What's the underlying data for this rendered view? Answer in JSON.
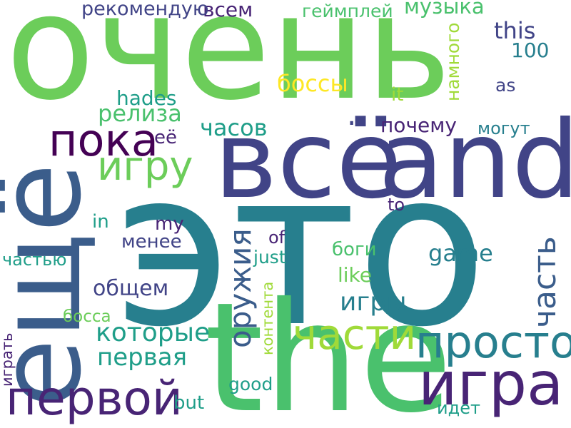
{
  "palette": {
    "yellow": "#fde725",
    "lime": "#a0da39",
    "green": "#4ac16d",
    "light_green": "#6ccd5a",
    "teal": "#1f9e89",
    "dark_teal": "#277f8e",
    "blue": "#3b5d8b",
    "indigo": "#414487",
    "purple": "#482475",
    "deep_purple": "#440154"
  },
  "words": [
    {
      "text": "очень",
      "color": "light_green",
      "orientation": "horizontal"
    },
    {
      "text": "это",
      "color": "dark_teal",
      "orientation": "horizontal"
    },
    {
      "text": "the",
      "color": "green",
      "orientation": "horizontal"
    },
    {
      "text": "всё",
      "color": "indigo",
      "orientation": "horizontal"
    },
    {
      "text": "and",
      "color": "indigo",
      "orientation": "horizontal"
    },
    {
      "text": "ещё",
      "color": "blue",
      "orientation": "vertical"
    },
    {
      "text": "игра",
      "color": "purple",
      "orientation": "horizontal"
    },
    {
      "text": "первой",
      "color": "purple",
      "orientation": "horizontal"
    },
    {
      "text": "просто",
      "color": "dark_teal",
      "orientation": "horizontal"
    },
    {
      "text": "части",
      "color": "lime",
      "orientation": "horizontal"
    },
    {
      "text": "пока",
      "color": "deep_purple",
      "orientation": "horizontal"
    },
    {
      "text": "игру",
      "color": "light_green",
      "orientation": "horizontal"
    },
    {
      "text": "часть",
      "color": "blue",
      "orientation": "vertical"
    },
    {
      "text": "оружия",
      "color": "blue",
      "orientation": "vertical"
    },
    {
      "text": "которые",
      "color": "teal",
      "orientation": "horizontal"
    },
    {
      "text": "первая",
      "color": "teal",
      "orientation": "horizontal"
    },
    {
      "text": "игры",
      "color": "dark_teal",
      "orientation": "horizontal"
    },
    {
      "text": "часов",
      "color": "teal",
      "orientation": "horizontal"
    },
    {
      "text": "релиза",
      "color": "green",
      "orientation": "horizontal"
    },
    {
      "text": "this",
      "color": "indigo",
      "orientation": "horizontal"
    },
    {
      "text": "..",
      "color": "indigo",
      "orientation": "horizontal"
    },
    {
      "text": "почему",
      "color": "purple",
      "orientation": "horizontal"
    },
    {
      "text": "боссы",
      "color": "yellow",
      "orientation": "horizontal"
    },
    {
      "text": "game",
      "color": "dark_teal",
      "orientation": "horizontal"
    },
    {
      "text": "общем",
      "color": "indigo",
      "orientation": "horizontal"
    },
    {
      "text": "hades",
      "color": "teal",
      "orientation": "horizontal"
    },
    {
      "text": "100",
      "color": "dark_teal",
      "orientation": "horizontal"
    },
    {
      "text": "всем",
      "color": "purple",
      "orientation": "horizontal"
    },
    {
      "text": "рекомендую",
      "color": "indigo",
      "orientation": "horizontal"
    },
    {
      "text": "геймплей",
      "color": "green",
      "orientation": "horizontal"
    },
    {
      "text": "музыка",
      "color": "green",
      "orientation": "horizontal"
    },
    {
      "text": "намного",
      "color": "lime",
      "orientation": "vertical"
    },
    {
      "text": "as",
      "color": "indigo",
      "orientation": "horizontal"
    },
    {
      "text": "it",
      "color": "lime",
      "orientation": "horizontal"
    },
    {
      "text": "могут",
      "color": "dark_teal",
      "orientation": "horizontal"
    },
    {
      "text": "её",
      "color": "purple",
      "orientation": "horizontal"
    },
    {
      "text": "to",
      "color": "purple",
      "orientation": "horizontal"
    },
    {
      "text": "in",
      "color": "teal",
      "orientation": "horizontal"
    },
    {
      "text": "my",
      "color": "purple",
      "orientation": "horizontal"
    },
    {
      "text": "менее",
      "color": "indigo",
      "orientation": "horizontal"
    },
    {
      "text": "of",
      "color": "purple",
      "orientation": "horizontal"
    },
    {
      "text": "just",
      "color": "teal",
      "orientation": "horizontal"
    },
    {
      "text": "боги",
      "color": "green",
      "orientation": "horizontal"
    },
    {
      "text": "like",
      "color": "light_green",
      "orientation": "horizontal"
    },
    {
      "text": "частью",
      "color": "teal",
      "orientation": "horizontal"
    },
    {
      "text": "контента",
      "color": "lime",
      "orientation": "vertical"
    },
    {
      "text": "босса",
      "color": "light_green",
      "orientation": "horizontal"
    },
    {
      "text": "играть",
      "color": "purple",
      "orientation": "vertical"
    },
    {
      "text": "good",
      "color": "teal",
      "orientation": "horizontal"
    },
    {
      "text": "but",
      "color": "teal",
      "orientation": "horizontal"
    },
    {
      "text": "идет",
      "color": "teal",
      "orientation": "horizontal"
    }
  ]
}
